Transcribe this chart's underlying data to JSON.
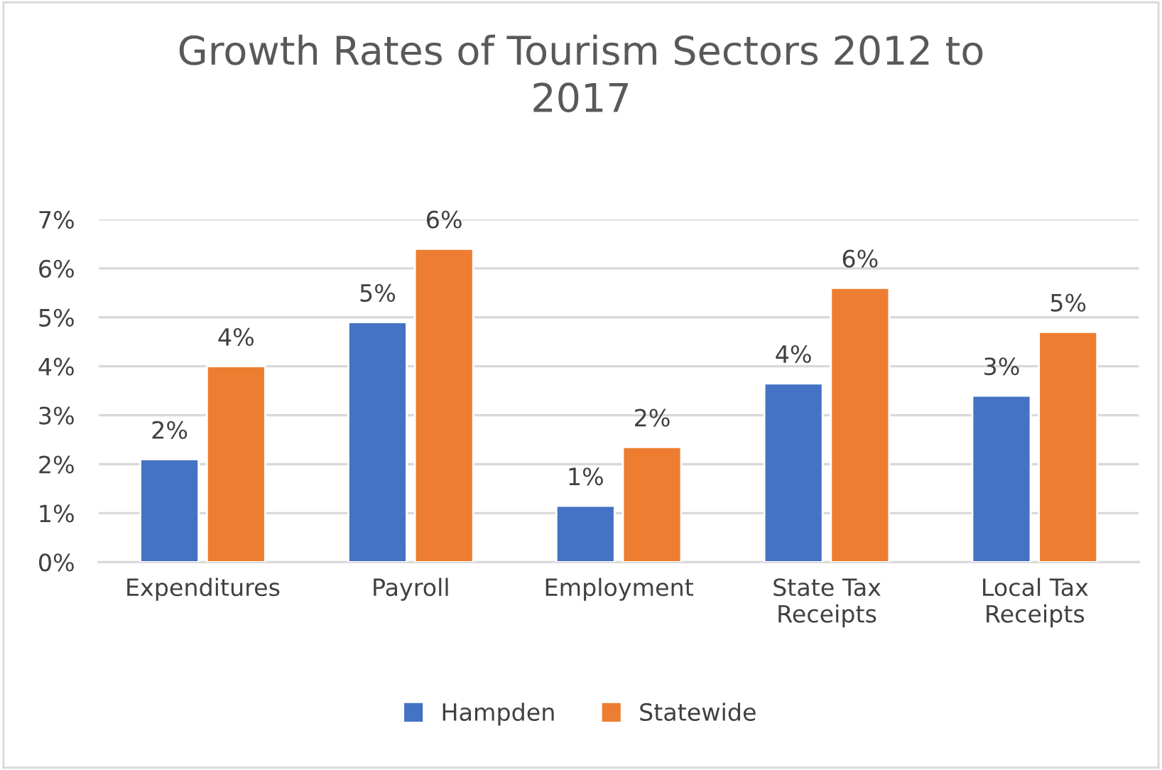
{
  "chart_data": {
    "type": "bar",
    "title": "Growth Rates of Tourism Sectors 2012 to\n2017",
    "categories": [
      "Expenditures",
      "Payroll",
      "Employment",
      "State Tax\nReceipts",
      "Local Tax\nReceipts"
    ],
    "series": [
      {
        "name": "Hampden",
        "color": "#4472c4",
        "values": [
          2.1,
          4.9,
          1.15,
          3.65,
          3.4
        ],
        "value_labels": [
          "2%",
          "5%",
          "1%",
          "4%",
          "3%"
        ]
      },
      {
        "name": "Statewide",
        "color": "#ed7d31",
        "values": [
          4.0,
          6.4,
          2.35,
          5.6,
          4.7
        ],
        "value_labels": [
          "4%",
          "6%",
          "2%",
          "6%",
          "5%"
        ]
      }
    ],
    "ylim": [
      0,
      7
    ],
    "yticks": [
      {
        "value": 0,
        "label": "0%"
      },
      {
        "value": 1,
        "label": "1%"
      },
      {
        "value": 2,
        "label": "2%"
      },
      {
        "value": 3,
        "label": "3%"
      },
      {
        "value": 4,
        "label": "4%"
      },
      {
        "value": 5,
        "label": "5%"
      },
      {
        "value": 6,
        "label": "6%"
      },
      {
        "value": 7,
        "label": "7%"
      }
    ],
    "grid": "y",
    "legend": "bottom"
  }
}
